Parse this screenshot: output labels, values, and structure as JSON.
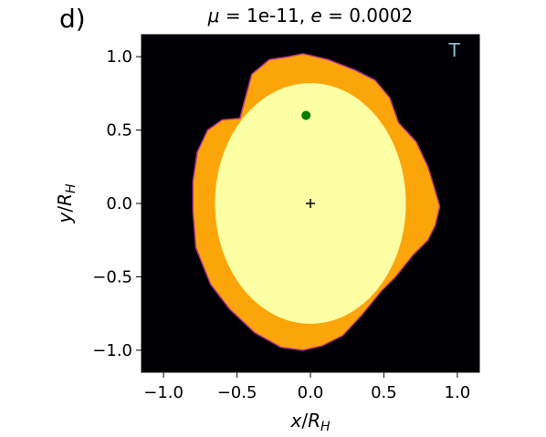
{
  "chart_data": {
    "type": "heatmap",
    "panel_label": "d)",
    "title": "μ = 1e-11, e = 0.0002",
    "title_parts": {
      "mu_sym": "μ",
      "mu_val": " = 1e-11, ",
      "e_sym": "e",
      "e_val": " = 0.0002"
    },
    "xlabel": {
      "var": "x",
      "sub": "H",
      "text": "x/R_H"
    },
    "ylabel": {
      "var": "y",
      "sub": "H",
      "text": "y/R_H"
    },
    "xlim": [
      -1.15,
      1.15
    ],
    "ylim": [
      -1.15,
      1.15
    ],
    "xticks": [
      -1.0,
      -0.5,
      0.0,
      0.5,
      1.0
    ],
    "yticks": [
      -1.0,
      -0.5,
      0.0,
      0.5,
      1.0
    ],
    "xtick_labels": [
      "−1.0",
      "−0.5",
      "0.0",
      "0.5",
      "1.0"
    ],
    "ytick_labels": [
      "−1.0",
      "−0.5",
      "0.0",
      "0.5",
      "1.0"
    ],
    "corner_label": "T",
    "colors": {
      "background": "#000004",
      "outer_region": "#fca50a",
      "inner_region": "#fcffa4",
      "edge": "#b4368a",
      "planet_marker": "#007a00",
      "corner_label": "#8fb9d6"
    },
    "regions": [
      {
        "name": "outer-stable-region",
        "boundary": [
          [
            -0.48,
            0.58
          ],
          [
            -0.4,
            0.88
          ],
          [
            -0.28,
            0.98
          ],
          [
            -0.15,
            1.0
          ],
          [
            -0.05,
            1.02
          ],
          [
            0.12,
            0.98
          ],
          [
            0.3,
            0.91
          ],
          [
            0.44,
            0.84
          ],
          [
            0.54,
            0.72
          ],
          [
            0.6,
            0.55
          ],
          [
            0.72,
            0.42
          ],
          [
            0.8,
            0.25
          ],
          [
            0.84,
            0.12
          ],
          [
            0.88,
            -0.02
          ],
          [
            0.85,
            -0.15
          ],
          [
            0.8,
            -0.25
          ],
          [
            0.7,
            -0.35
          ],
          [
            0.58,
            -0.5
          ],
          [
            0.48,
            -0.6
          ],
          [
            0.35,
            -0.76
          ],
          [
            0.22,
            -0.9
          ],
          [
            0.08,
            -0.97
          ],
          [
            -0.05,
            -1.0
          ],
          [
            -0.2,
            -0.98
          ],
          [
            -0.38,
            -0.88
          ],
          [
            -0.55,
            -0.72
          ],
          [
            -0.68,
            -0.55
          ],
          [
            -0.78,
            -0.3
          ],
          [
            -0.8,
            -0.05
          ],
          [
            -0.8,
            0.15
          ],
          [
            -0.77,
            0.35
          ],
          [
            -0.7,
            0.5
          ],
          [
            -0.6,
            0.57
          ]
        ]
      },
      {
        "name": "inner-stable-region",
        "center": [
          0.0,
          0.0
        ],
        "rx": 0.65,
        "ry": 0.82
      }
    ],
    "markers": [
      {
        "name": "planet",
        "x": -0.03,
        "y": 0.6,
        "symbol": "circle"
      },
      {
        "name": "star",
        "x": 0.0,
        "y": 0.0,
        "symbol": "plus"
      }
    ]
  }
}
